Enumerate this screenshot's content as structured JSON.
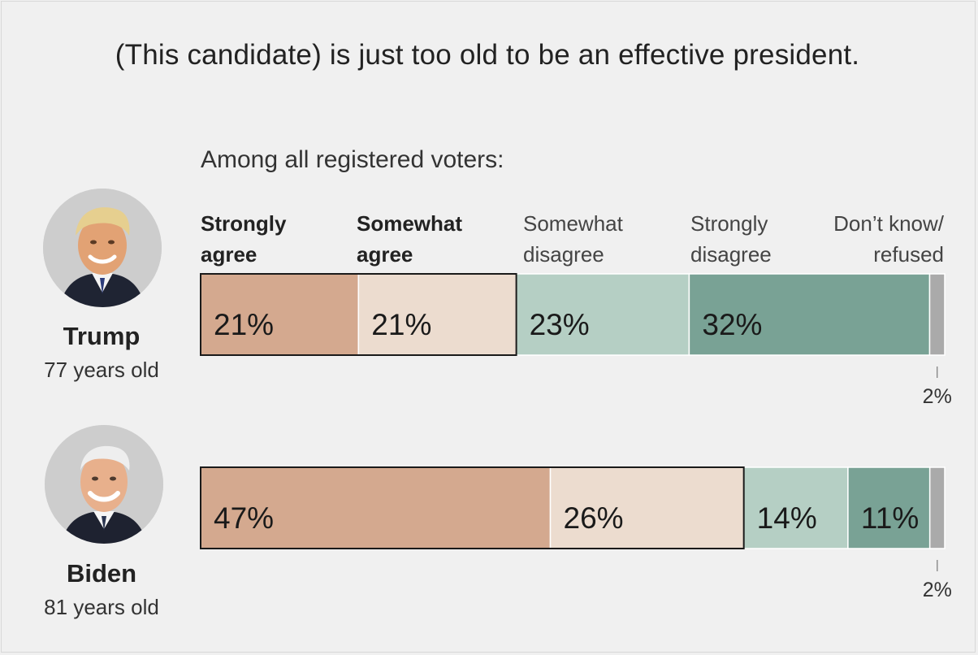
{
  "title": "(This candidate) is just too old to be an effective president.",
  "subtitle": "Among all registered voters:",
  "categories": [
    {
      "line1": "Strongly",
      "line2": "agree",
      "bold": true
    },
    {
      "line1": "Somewhat",
      "line2": "agree",
      "bold": true
    },
    {
      "line1": "Somewhat",
      "line2": "disagree",
      "bold": false
    },
    {
      "line1": "Strongly",
      "line2": "disagree",
      "bold": false
    },
    {
      "line1": "Don’t know/",
      "line2": "refused",
      "bold": false
    }
  ],
  "candidates": [
    {
      "name": "Trump",
      "age": "77 years old"
    },
    {
      "name": "Biden",
      "age": "81 years old"
    }
  ],
  "colors": {
    "strongly_agree": "#d4a98f",
    "somewhat_agree": "#ecdccf",
    "somewhat_disagree": "#b5cfc4",
    "strongly_disagree": "#79a295",
    "dont_know": "#aaaaaa",
    "background": "#f0f0f0"
  },
  "chart_data": {
    "type": "bar",
    "orientation": "horizontal-stacked",
    "title": "(This candidate) is just too old to be an effective president.",
    "subtitle": "Among all registered voters:",
    "categories": [
      "Trump",
      "Biden"
    ],
    "series": [
      {
        "name": "Strongly agree",
        "values": [
          21,
          47
        ],
        "labels": [
          "21%",
          "47%"
        ]
      },
      {
        "name": "Somewhat agree",
        "values": [
          21,
          26
        ],
        "labels": [
          "21%",
          "26%"
        ]
      },
      {
        "name": "Somewhat disagree",
        "values": [
          23,
          14
        ],
        "labels": [
          "23%",
          "14%"
        ]
      },
      {
        "name": "Strongly disagree",
        "values": [
          32,
          11
        ],
        "labels": [
          "32%",
          "11%"
        ]
      },
      {
        "name": "Don’t know/refused",
        "values": [
          2,
          2
        ],
        "labels": [
          "2%",
          "2%"
        ]
      }
    ],
    "unit": "%",
    "agree_outlined": true
  }
}
